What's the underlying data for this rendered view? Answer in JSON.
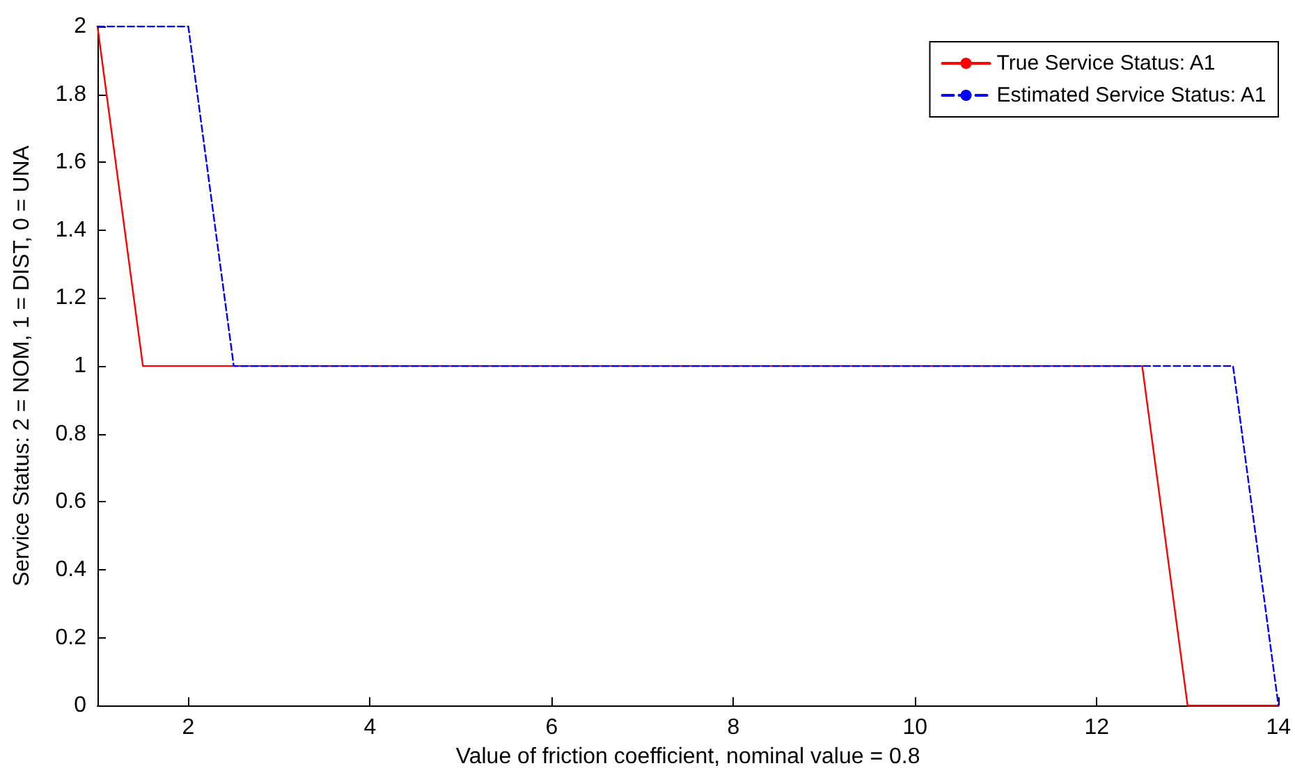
{
  "chart_data": {
    "type": "line",
    "xlabel": "Value of friction coefficient, nominal value = 0.8",
    "ylabel": "Service Status: 2 = NOM, 1 = DIST, 0 = UNA",
    "xlim": [
      1,
      14
    ],
    "xticks": [
      2,
      4,
      6,
      8,
      10,
      12,
      14
    ],
    "ylim": [
      0,
      2
    ],
    "yticks": [
      0,
      0.2,
      0.4,
      0.6,
      0.8,
      1,
      1.2,
      1.4,
      1.6,
      1.8,
      2
    ],
    "grid": false,
    "legend": "top right",
    "marker": "none",
    "series": [
      {
        "name": "True Service Status: A1",
        "color": "#ff0000",
        "line_style": "solid",
        "x": [
          1,
          1.5,
          12.5,
          13,
          14
        ],
        "values": [
          2,
          1,
          1,
          0,
          0
        ]
      },
      {
        "name": "Estimated Service Status: A1",
        "color": "#0000ff",
        "line_style": "dashed",
        "x": [
          1,
          2,
          2.5,
          13.5,
          14
        ],
        "values": [
          2,
          2,
          1,
          1,
          0
        ]
      }
    ]
  }
}
